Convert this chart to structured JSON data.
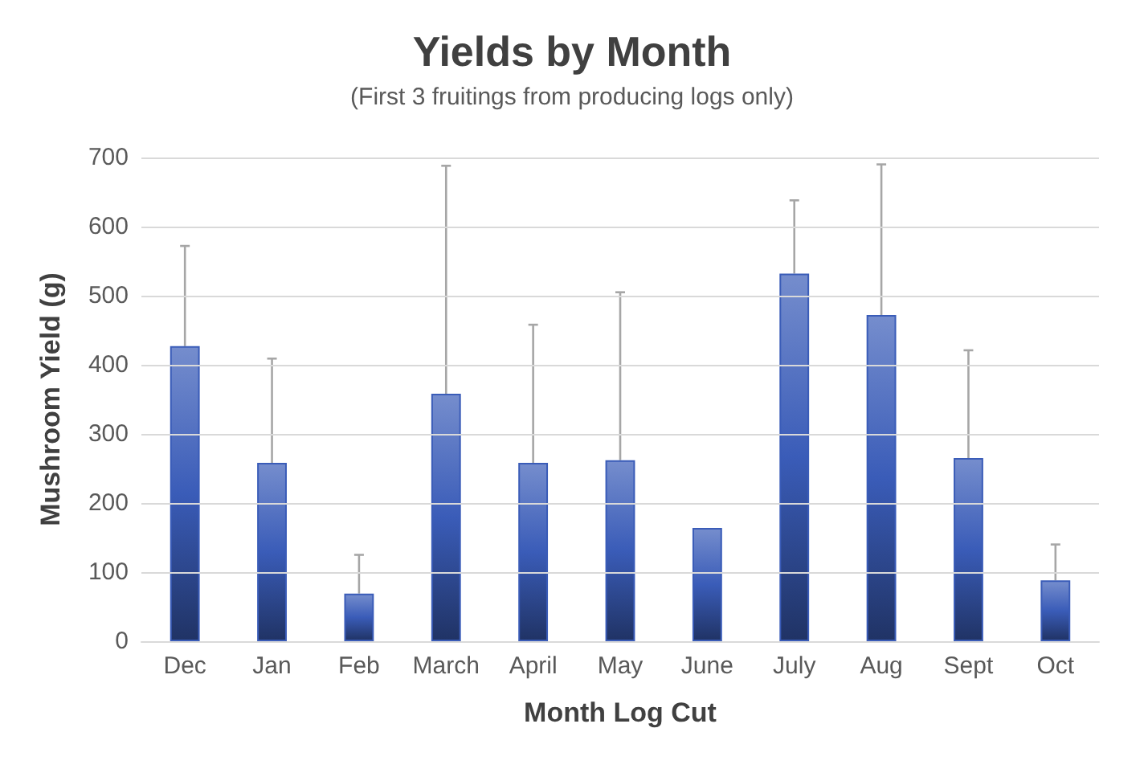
{
  "chart_data": {
    "type": "bar",
    "title": "Yields by Month",
    "subtitle": "(First 3 fruitings from producing logs only)",
    "xlabel": "Month Log Cut",
    "ylabel": "Mushroom Yield (g)",
    "categories": [
      "Dec",
      "Jan",
      "Feb",
      "March",
      "April",
      "May",
      "June",
      "July",
      "Aug",
      "Sept",
      "Oct"
    ],
    "values": [
      427,
      258,
      69,
      358,
      258,
      262,
      164,
      532,
      472,
      265,
      88
    ],
    "errors": [
      [
        427,
        572
      ],
      [
        258,
        409
      ],
      [
        69,
        125
      ],
      [
        358,
        688
      ],
      [
        258,
        458
      ],
      [
        262,
        505
      ],
      null,
      [
        532,
        638
      ],
      [
        472,
        690
      ],
      [
        265,
        421
      ],
      [
        88,
        140
      ]
    ],
    "color": "#3a5cb8",
    "ylim": [
      0,
      700
    ],
    "yticks": [
      0,
      100,
      200,
      300,
      400,
      500,
      600,
      700
    ],
    "grid": "y"
  }
}
